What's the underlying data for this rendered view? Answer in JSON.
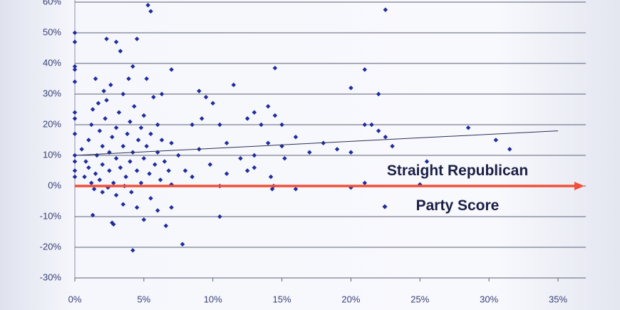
{
  "chart_data": {
    "type": "scatter",
    "xlim": [
      0,
      35
    ],
    "ylim": [
      -30,
      60
    ],
    "xticks": [
      {
        "value": 0,
        "label": "0%"
      },
      {
        "value": 5,
        "label": "5%"
      },
      {
        "value": 10,
        "label": "10%"
      },
      {
        "value": 15,
        "label": "15%"
      },
      {
        "value": 20,
        "label": "20%"
      },
      {
        "value": 25,
        "label": "25%"
      },
      {
        "value": 30,
        "label": "30%"
      },
      {
        "value": 35,
        "label": "35%"
      }
    ],
    "yticks": [
      {
        "value": -30,
        "label": "-30%"
      },
      {
        "value": -20,
        "label": "-20%"
      },
      {
        "value": -10,
        "label": "-10%"
      },
      {
        "value": 0,
        "label": "0%"
      },
      {
        "value": 10,
        "label": "10%"
      },
      {
        "value": 20,
        "label": "20%"
      },
      {
        "value": 30,
        "label": "30%"
      },
      {
        "value": 40,
        "label": "40%"
      },
      {
        "value": 50,
        "label": "50%"
      },
      {
        "value": 60,
        "label": "60%"
      }
    ],
    "grid": true,
    "series": [
      {
        "name": "Straight Republican Party Score",
        "color": "#1f2d9c",
        "x": [
          0,
          0,
          0,
          0,
          0,
          0,
          0,
          0,
          0,
          0,
          0,
          0,
          5.3,
          5.5,
          2.3,
          3,
          3.3,
          4.5,
          1.5,
          4.2,
          5.2,
          7,
          22.5,
          21,
          20,
          22,
          14.5,
          11.5,
          1.3,
          2.7,
          2.8,
          4.2,
          6.6,
          7.8,
          10.5,
          5,
          6,
          3.5,
          4.5,
          7,
          2,
          3,
          5.5,
          9,
          9.5,
          10,
          9.2,
          8.5,
          10.5,
          11,
          12,
          13,
          12.5,
          13,
          13.5,
          14,
          14.5,
          15,
          14,
          15,
          15.2,
          14.2,
          14.4,
          14.3,
          16,
          16,
          17,
          18,
          19,
          20,
          20,
          21,
          21,
          21.5,
          22,
          23,
          22.5,
          25,
          25.5,
          28.5,
          30.5,
          31.5,
          10.5,
          11,
          12.5,
          13,
          9,
          8,
          9.8,
          8.5,
          7.5,
          0.5,
          0.8,
          1,
          1,
          1.2,
          1.3,
          1.5,
          1.6,
          1.8,
          1.8,
          2,
          2,
          2.2,
          2.3,
          2.5,
          2.5,
          2.7,
          2.8,
          3,
          3,
          3.2,
          3.3,
          3.5,
          3.5,
          3.7,
          3.8,
          4,
          4,
          4.2,
          4.3,
          4.5,
          4.6,
          4.8,
          4.8,
          5,
          5,
          5.2,
          5.4,
          5.5,
          5.7,
          5.8,
          6,
          6,
          6.2,
          6.3,
          6.5,
          6.8,
          7,
          7,
          1.2,
          0.7,
          1.4,
          2.4,
          3.6,
          4.1,
          2.1,
          1.7,
          2.6,
          3.9,
          6.3
        ],
        "values": [
          50,
          47,
          39,
          38,
          34,
          24,
          22,
          17,
          10,
          8,
          5,
          3,
          59,
          57,
          48,
          47,
          44,
          48,
          35,
          39,
          35,
          38,
          57.5,
          38,
          32,
          30,
          38.5,
          33,
          -9.5,
          -12,
          -12.5,
          -21,
          -13,
          -19,
          -10,
          -11,
          -8,
          -6,
          -7,
          -7,
          -2,
          -3,
          -4,
          31,
          29,
          27,
          22,
          20,
          20,
          14,
          9,
          10,
          22,
          24,
          20,
          26,
          23,
          20,
          14,
          13,
          9,
          3,
          0,
          -1,
          -1,
          16,
          11,
          14,
          12,
          -0.5,
          11,
          1,
          20,
          20,
          18,
          13,
          16,
          0.5,
          8,
          19,
          15,
          12,
          0,
          4,
          5,
          6,
          12,
          5,
          7,
          3,
          10,
          12,
          8,
          6,
          15,
          20,
          25,
          4,
          10,
          2,
          18,
          7,
          13,
          22,
          28,
          5,
          11,
          16,
          1,
          9,
          19,
          24,
          6,
          13,
          30,
          3,
          17,
          8,
          21,
          11,
          26,
          5,
          15,
          1,
          19,
          9,
          23,
          13,
          4,
          17,
          29,
          7,
          11,
          20,
          2,
          15,
          8,
          5,
          14,
          0.5,
          1,
          3,
          -1,
          -0.5,
          0,
          -2,
          31,
          27,
          33,
          35,
          30
        ]
      }
    ],
    "trendline": {
      "x": [
        0,
        35
      ],
      "values": [
        10,
        18
      ]
    }
  }
}
